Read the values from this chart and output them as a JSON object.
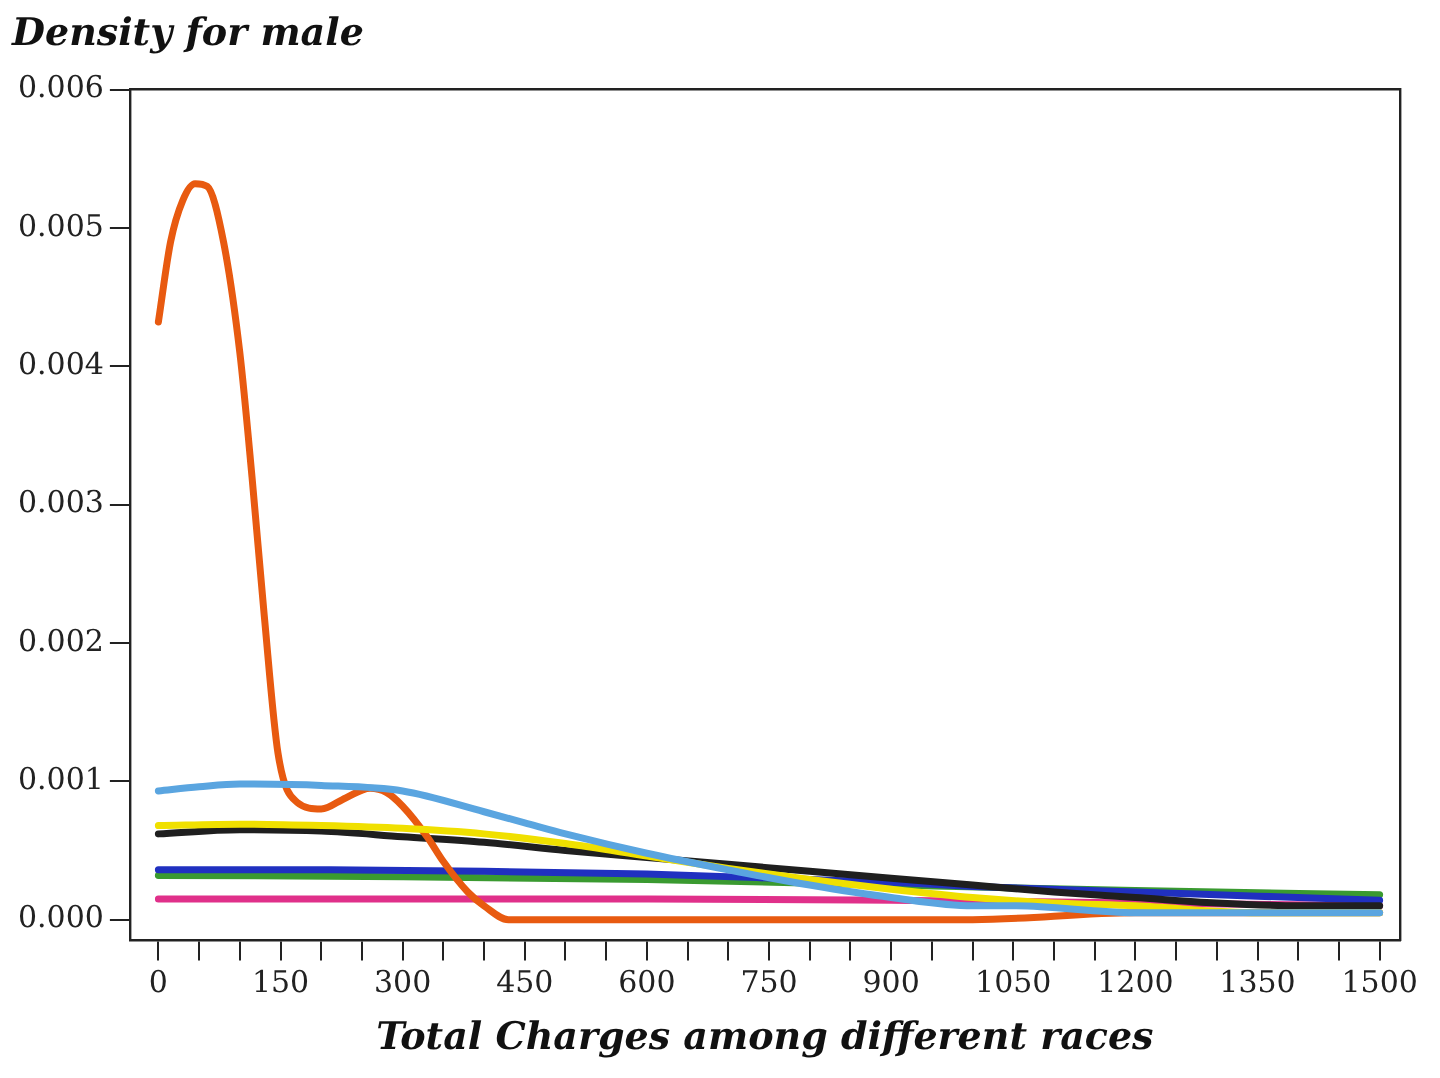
{
  "chart_data": {
    "type": "line",
    "title": "Density for male",
    "xlabel": "Total Charges among different races",
    "xlim": [
      -35,
      1525
    ],
    "ylim": [
      -0.00015,
      0.006
    ],
    "xticks": [
      0,
      {
        "value": 50,
        "label": null
      },
      {
        "value": 100,
        "label": null
      },
      150,
      {
        "value": 200,
        "label": null
      },
      {
        "value": 250,
        "label": null
      },
      300,
      {
        "value": 350,
        "label": null
      },
      {
        "value": 400,
        "label": null
      },
      450,
      {
        "value": 500,
        "label": null
      },
      {
        "value": 550,
        "label": null
      },
      600,
      {
        "value": 650,
        "label": null
      },
      {
        "value": 700,
        "label": null
      },
      750,
      {
        "value": 800,
        "label": null
      },
      {
        "value": 850,
        "label": null
      },
      900,
      {
        "value": 950,
        "label": null
      },
      {
        "value": 1000,
        "label": null
      },
      1050,
      {
        "value": 1100,
        "label": null
      },
      {
        "value": 1150,
        "label": null
      },
      1200,
      {
        "value": 1250,
        "label": null
      },
      {
        "value": 1300,
        "label": null
      },
      1350,
      {
        "value": 1400,
        "label": null
      },
      {
        "value": 1450,
        "label": null
      },
      1500
    ],
    "yticks": [
      {
        "value": 0,
        "label": "0.000"
      },
      {
        "value": 0.001,
        "label": "0.001"
      },
      {
        "value": 0.002,
        "label": "0.002"
      },
      {
        "value": 0.003,
        "label": "0.003"
      },
      {
        "value": 0.004,
        "label": "0.004"
      },
      {
        "value": 0.005,
        "label": "0.005"
      },
      {
        "value": 0.006,
        "label": "0.006"
      }
    ],
    "grid": false,
    "legend": false,
    "marker": "none",
    "line_style": "solid",
    "series": [
      {
        "color": "#5aa5e0",
        "x": [
          0,
          50,
          100,
          200,
          300,
          400,
          450,
          500,
          600,
          700,
          800,
          900,
          1000,
          1050,
          1200,
          1350,
          1500
        ],
        "values": [
          0.00093,
          0.00096,
          0.00098,
          0.00097,
          0.00093,
          0.00078,
          0.0007,
          0.00062,
          0.00048,
          0.00036,
          0.00025,
          0.00016,
          0.0001,
          0.0001,
          5e-05,
          5e-05,
          5e-05
        ]
      },
      {
        "color": "#f0e000",
        "x": [
          0,
          100,
          200,
          300,
          400,
          500,
          600,
          700,
          800,
          900,
          1000,
          1100,
          1200,
          1350,
          1500
        ],
        "values": [
          0.00068,
          0.00069,
          0.00068,
          0.00066,
          0.00062,
          0.00055,
          0.00046,
          0.00037,
          0.00029,
          0.00022,
          0.00016,
          0.00012,
          0.0001,
          5e-05,
          5e-05
        ]
      },
      {
        "color": "#e85a10",
        "x": [
          0,
          15,
          30,
          45,
          60,
          80,
          100,
          115,
          130,
          147,
          170,
          200,
          230,
          260,
          280,
          300,
          330,
          350,
          380,
          400,
          430,
          460,
          500,
          600,
          800,
          1000,
          1200,
          1500
        ],
        "values": [
          0.00432,
          0.0049,
          0.0052,
          0.00532,
          0.0053,
          0.0049,
          0.0041,
          0.0032,
          0.0022,
          0.0012,
          0.00085,
          0.0008,
          0.00088,
          0.00095,
          0.00092,
          0.00082,
          0.0006,
          0.00042,
          0.0002,
          0.0001,
          0,
          0,
          0,
          0,
          0,
          0,
          5e-05,
          5e-05
        ]
      },
      {
        "color": "#1f1f1f",
        "x": [
          0,
          100,
          200,
          300,
          400,
          500,
          600,
          700,
          800,
          900,
          1000,
          1100,
          1200,
          1300,
          1400,
          1500
        ],
        "values": [
          0.00062,
          0.00065,
          0.00064,
          0.0006,
          0.00056,
          0.0005,
          0.00045,
          0.0004,
          0.00035,
          0.0003,
          0.00025,
          0.0002,
          0.00016,
          0.00012,
          0.0001,
          0.0001
        ]
      },
      {
        "color": "#2030c0",
        "x": [
          0,
          200,
          400,
          600,
          800,
          900,
          1000,
          1200,
          1350,
          1500
        ],
        "values": [
          0.00036,
          0.00036,
          0.00035,
          0.00033,
          0.00029,
          0.00027,
          0.00024,
          0.0002,
          0.00017,
          0.00014
        ]
      },
      {
        "color": "#3a9a30",
        "x": [
          0,
          300,
          600,
          900,
          1200,
          1500
        ],
        "values": [
          0.00032,
          0.00031,
          0.00029,
          0.00025,
          0.00021,
          0.00018
        ]
      },
      {
        "color": "#e0308a",
        "x": [
          0,
          300,
          600,
          900,
          1200,
          1500
        ],
        "values": [
          0.00015,
          0.00015,
          0.00015,
          0.00014,
          0.00012,
          0.0001
        ]
      }
    ]
  }
}
